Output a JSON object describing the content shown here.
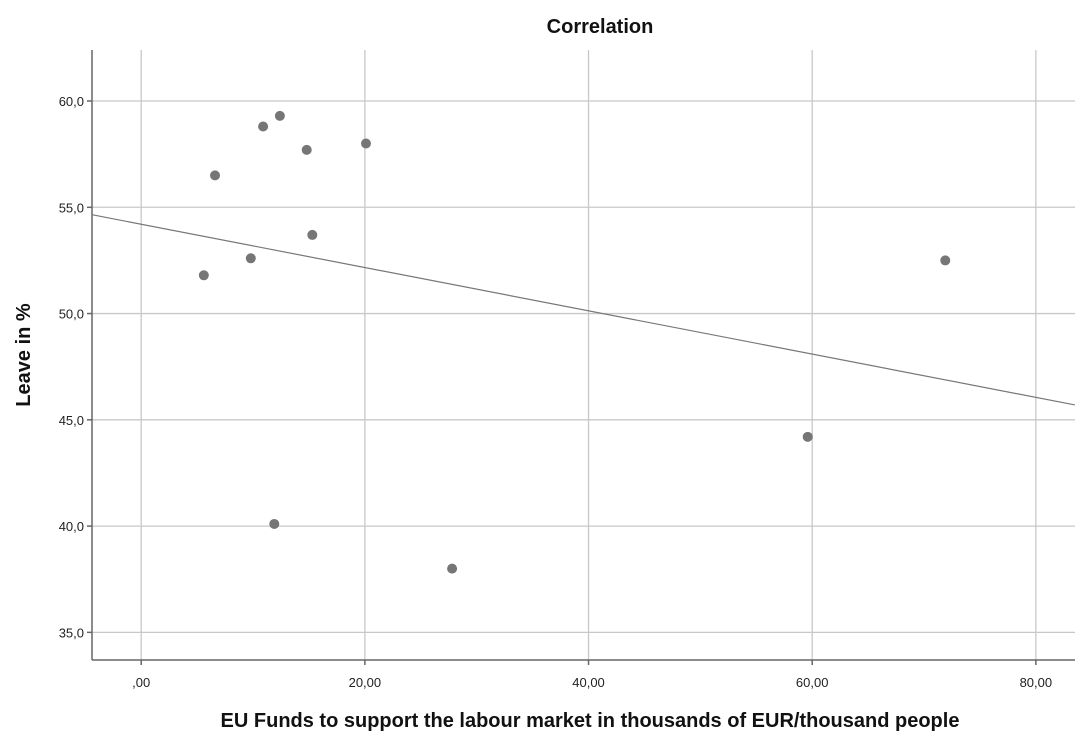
{
  "chart_data": {
    "type": "scatter",
    "title": "Correlation",
    "xlabel": "EU Funds to support the labour market in thousands of EUR/thousand people",
    "ylabel": "Leave in %",
    "xlim": [
      -4.4,
      83.5
    ],
    "ylim": [
      33.7,
      62.4
    ],
    "x_ticks": [
      0,
      20,
      40,
      60,
      80
    ],
    "x_tick_labels": [
      ",00",
      "20,00",
      "40,00",
      "60,00",
      "80,00"
    ],
    "y_ticks": [
      35,
      40,
      45,
      50,
      55,
      60
    ],
    "y_tick_labels": [
      "35,0",
      "40,0",
      "45,0",
      "50,0",
      "55,0",
      "60,0"
    ],
    "grid": true,
    "legend": "none",
    "colors": {
      "points": "#767676",
      "fit_line": "#777777",
      "grid": "#c8c8c8"
    },
    "points": [
      {
        "x": 5.6,
        "y": 51.8
      },
      {
        "x": 6.6,
        "y": 56.5
      },
      {
        "x": 9.8,
        "y": 52.6
      },
      {
        "x": 10.9,
        "y": 58.8
      },
      {
        "x": 11.9,
        "y": 40.1
      },
      {
        "x": 12.4,
        "y": 59.3
      },
      {
        "x": 14.8,
        "y": 57.7
      },
      {
        "x": 15.3,
        "y": 53.7
      },
      {
        "x": 20.1,
        "y": 58.0
      },
      {
        "x": 27.8,
        "y": 38.0
      },
      {
        "x": 59.6,
        "y": 44.2
      },
      {
        "x": 71.9,
        "y": 52.5
      }
    ],
    "fit_line": {
      "type": "linear",
      "x": [
        -4.4,
        83.5
      ],
      "y": [
        54.65,
        45.7
      ]
    }
  }
}
